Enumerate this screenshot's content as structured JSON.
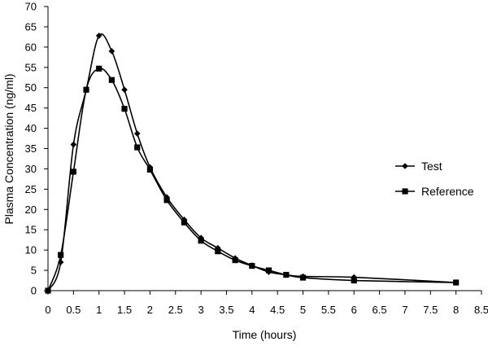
{
  "chart_data": {
    "type": "line",
    "title": "",
    "xlabel": "Time (hours)",
    "ylabel": "Plasma Concentration (ng/ml)",
    "xlim": [
      0,
      8.5
    ],
    "ylim": [
      0,
      70
    ],
    "x_ticks": [
      0,
      0.5,
      1,
      1.5,
      2,
      2.5,
      3,
      3.5,
      4,
      4.5,
      5,
      5.5,
      6,
      6.5,
      7,
      7.5,
      8,
      8.5
    ],
    "y_ticks": [
      0,
      5,
      10,
      15,
      20,
      25,
      30,
      35,
      40,
      45,
      50,
      55,
      60,
      65,
      70
    ],
    "grid": false,
    "legend_position": "right",
    "series": [
      {
        "name": "Test",
        "marker": "diamond",
        "color": "#000000",
        "points": [
          [
            0,
            0
          ],
          [
            0.25,
            7
          ],
          [
            0.5,
            36
          ],
          [
            0.75,
            49.5
          ],
          [
            1.0,
            62.8
          ],
          [
            1.25,
            59
          ],
          [
            1.5,
            49.5
          ],
          [
            1.75,
            38.7
          ],
          [
            2.0,
            30.4
          ],
          [
            2.33,
            23
          ],
          [
            2.67,
            17.5
          ],
          [
            3.0,
            13
          ],
          [
            3.33,
            10.5
          ],
          [
            3.67,
            8
          ],
          [
            4.0,
            6.2
          ],
          [
            4.33,
            4.6
          ],
          [
            4.67,
            3.9
          ],
          [
            5.0,
            3.5
          ],
          [
            6.0,
            3.3
          ],
          [
            8.0,
            2
          ]
        ]
      },
      {
        "name": "Reference",
        "marker": "square",
        "color": "#000000",
        "points": [
          [
            0,
            0
          ],
          [
            0.25,
            8.8
          ],
          [
            0.5,
            29.3
          ],
          [
            0.75,
            49.5
          ],
          [
            1.0,
            54.7
          ],
          [
            1.25,
            51.9
          ],
          [
            1.5,
            44.8
          ],
          [
            1.75,
            35.3
          ],
          [
            2.0,
            29.8
          ],
          [
            2.33,
            22.3
          ],
          [
            2.67,
            16.8
          ],
          [
            3.0,
            12.3
          ],
          [
            3.33,
            9.7
          ],
          [
            3.67,
            7.5
          ],
          [
            4.0,
            6.1
          ],
          [
            4.33,
            5
          ],
          [
            4.67,
            3.9
          ],
          [
            5.0,
            3.2
          ],
          [
            6.0,
            2.5
          ],
          [
            8.0,
            2
          ]
        ]
      }
    ]
  }
}
